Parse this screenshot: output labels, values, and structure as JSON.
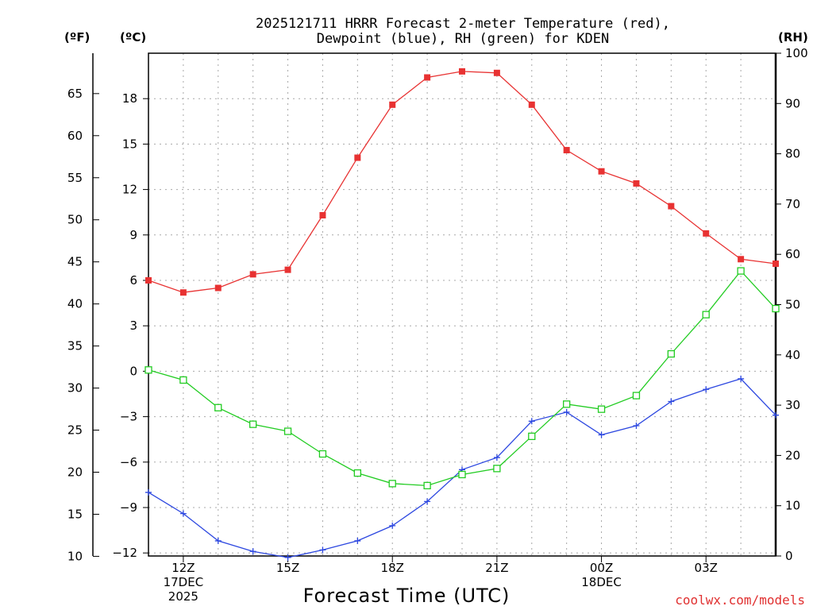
{
  "chart_data": {
    "type": "line",
    "title": "2025121711 HRRR Forecast 2-meter Temperature (red),",
    "subtitle": "Dewpoint (blue), RH (green) for KDEN",
    "xlabel": "Forecast Time (UTC)",
    "credit": "coolwx.com/models",
    "units": {
      "fahrenheit": "(ºF)",
      "celsius": "(ºC)",
      "rh": "(RH)"
    },
    "x_hours": [
      11,
      12,
      13,
      14,
      15,
      16,
      17,
      18,
      19,
      20,
      21,
      22,
      23,
      24,
      25,
      26,
      27,
      28,
      29
    ],
    "x_ticks": [
      {
        "hour": 12,
        "lines": [
          "12Z",
          "17DEC",
          "2025"
        ]
      },
      {
        "hour": 15,
        "lines": [
          "15Z"
        ]
      },
      {
        "hour": 18,
        "lines": [
          "18Z"
        ]
      },
      {
        "hour": 21,
        "lines": [
          "21Z"
        ]
      },
      {
        "hour": 24,
        "lines": [
          "00Z",
          "18DEC"
        ]
      },
      {
        "hour": 27,
        "lines": [
          "03Z"
        ]
      }
    ],
    "xlim": [
      11,
      29
    ],
    "ylim_celsius": [
      -12.2,
      21
    ],
    "ylim_rh": [
      0,
      100
    ],
    "celsius_ticks": [
      18,
      15,
      12,
      9,
      6,
      3,
      0,
      -3,
      -6,
      -9,
      -12
    ],
    "celsius_tick_labels": [
      "18",
      "15",
      "12",
      "9",
      "6",
      "3",
      "0",
      "-3",
      "-6",
      "-9",
      "-12"
    ],
    "fahrenheit_ticks": [
      65,
      60,
      55,
      50,
      45,
      40,
      35,
      30,
      25,
      20,
      15,
      10
    ],
    "fahrenheit_tick_labels": [
      "65",
      "60",
      "55",
      "50",
      "45",
      "40",
      "35",
      "30",
      "25",
      "20",
      "15",
      "10"
    ],
    "rh_ticks": [
      100,
      90,
      80,
      70,
      60,
      50,
      40,
      30,
      20,
      10,
      0
    ],
    "rh_tick_labels": [
      "100",
      "90",
      "80",
      "70",
      "60",
      "50",
      "40",
      "30",
      "20",
      "10",
      "0"
    ],
    "series": [
      {
        "name": "Temperature",
        "unit": "C",
        "color": "#e83232",
        "marker": "filled-square",
        "values": [
          6.0,
          5.2,
          5.5,
          6.4,
          6.7,
          10.3,
          14.1,
          17.6,
          19.4,
          19.8,
          19.7,
          17.6,
          14.6,
          13.2,
          12.4,
          10.9,
          9.1,
          7.4,
          7.1
        ]
      },
      {
        "name": "Dewpoint",
        "unit": "C",
        "color": "#2c47e0",
        "marker": "plus",
        "values": [
          -8.0,
          -9.4,
          -11.2,
          -11.9,
          -12.3,
          -11.8,
          -11.2,
          -10.2,
          -8.6,
          -6.5,
          -5.7,
          -3.3,
          -2.7,
          -4.2,
          -3.6,
          -2.0,
          -1.2,
          -0.5,
          -2.9
        ]
      },
      {
        "name": "RH",
        "unit": "%",
        "color": "#22cc22",
        "marker": "open-square",
        "values": [
          37,
          35,
          29.5,
          26.2,
          24.8,
          20.3,
          16.5,
          14.4,
          14.0,
          16.2,
          17.4,
          23.8,
          30.2,
          29.2,
          31.9,
          40.2,
          48.0,
          56.7,
          49.2
        ]
      }
    ]
  }
}
